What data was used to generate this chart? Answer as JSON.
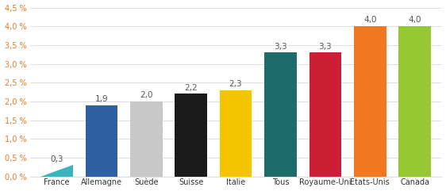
{
  "categories": [
    "France",
    "Allemagne",
    "Suède",
    "Suisse",
    "Italie",
    "Tous",
    "Royaume-Uni",
    "États-Unis",
    "Canada"
  ],
  "values": [
    0.3,
    1.9,
    2.0,
    2.2,
    2.3,
    3.3,
    3.3,
    4.0,
    4.0
  ],
  "labels": [
    "0,3",
    "1,9",
    "2,0",
    "2,2",
    "2,3",
    "3,3",
    "3,3",
    "4,0",
    "4,0"
  ],
  "bar_colors": [
    "#38b5be",
    "#2e5fa3",
    "#c8c8c8",
    "#1a1a1a",
    "#f5c400",
    "#1d6b6b",
    "#cc1f36",
    "#f07820",
    "#96c832"
  ],
  "france_triangle": true,
  "ylim": [
    0,
    4.5
  ],
  "yticks": [
    0.0,
    0.5,
    1.0,
    1.5,
    2.0,
    2.5,
    3.0,
    3.5,
    4.0,
    4.5
  ],
  "ytick_labels": [
    "0,0 %",
    "0,5 %",
    "1,0 %",
    "1,5 %",
    "2,0 %",
    "2,5 %",
    "3,0 %",
    "3,5 %",
    "4,0 %",
    "4,5 %"
  ],
  "ytick_color": "#e87722",
  "grid_color": "#dddddd",
  "label_fontsize": 7.0,
  "value_fontsize": 7.5,
  "value_color": "#555555",
  "xtick_color": "#333333",
  "background_color": "#ffffff",
  "bar_width": 0.72
}
